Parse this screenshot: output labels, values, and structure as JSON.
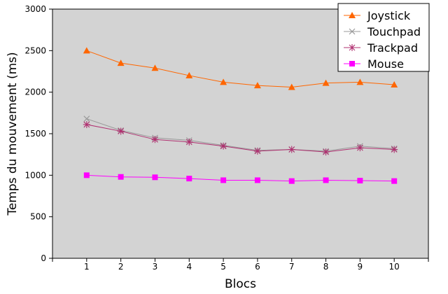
{
  "chart_data": {
    "type": "line",
    "title": "",
    "xlabel": "Blocs",
    "ylabel": "Temps du mouvement (ms)",
    "x": [
      1,
      2,
      3,
      4,
      5,
      6,
      7,
      8,
      9,
      10
    ],
    "xlim": [
      0,
      11
    ],
    "ylim": [
      0,
      3000
    ],
    "yticks": [
      0,
      500,
      1000,
      1500,
      2000,
      2500,
      3000
    ],
    "grid": false,
    "legend_position": "top-right",
    "plot_background": "#d3d3d3",
    "series": [
      {
        "name": "Joystick",
        "color": "#ff6600",
        "marker": "triangle",
        "values": [
          2500,
          2350,
          2290,
          2200,
          2120,
          2080,
          2060,
          2110,
          2120,
          2090
        ]
      },
      {
        "name": "Touchpad",
        "color": "#999999",
        "marker": "x",
        "values": [
          1680,
          1540,
          1450,
          1420,
          1360,
          1300,
          1310,
          1290,
          1350,
          1320
        ]
      },
      {
        "name": "Trackpad",
        "color": "#b03070",
        "marker": "asterisk",
        "values": [
          1610,
          1530,
          1430,
          1400,
          1350,
          1290,
          1310,
          1280,
          1330,
          1310
        ]
      },
      {
        "name": "Mouse",
        "color": "#ff00ff",
        "marker": "square",
        "values": [
          1000,
          980,
          975,
          960,
          940,
          940,
          930,
          940,
          935,
          930
        ]
      }
    ]
  }
}
